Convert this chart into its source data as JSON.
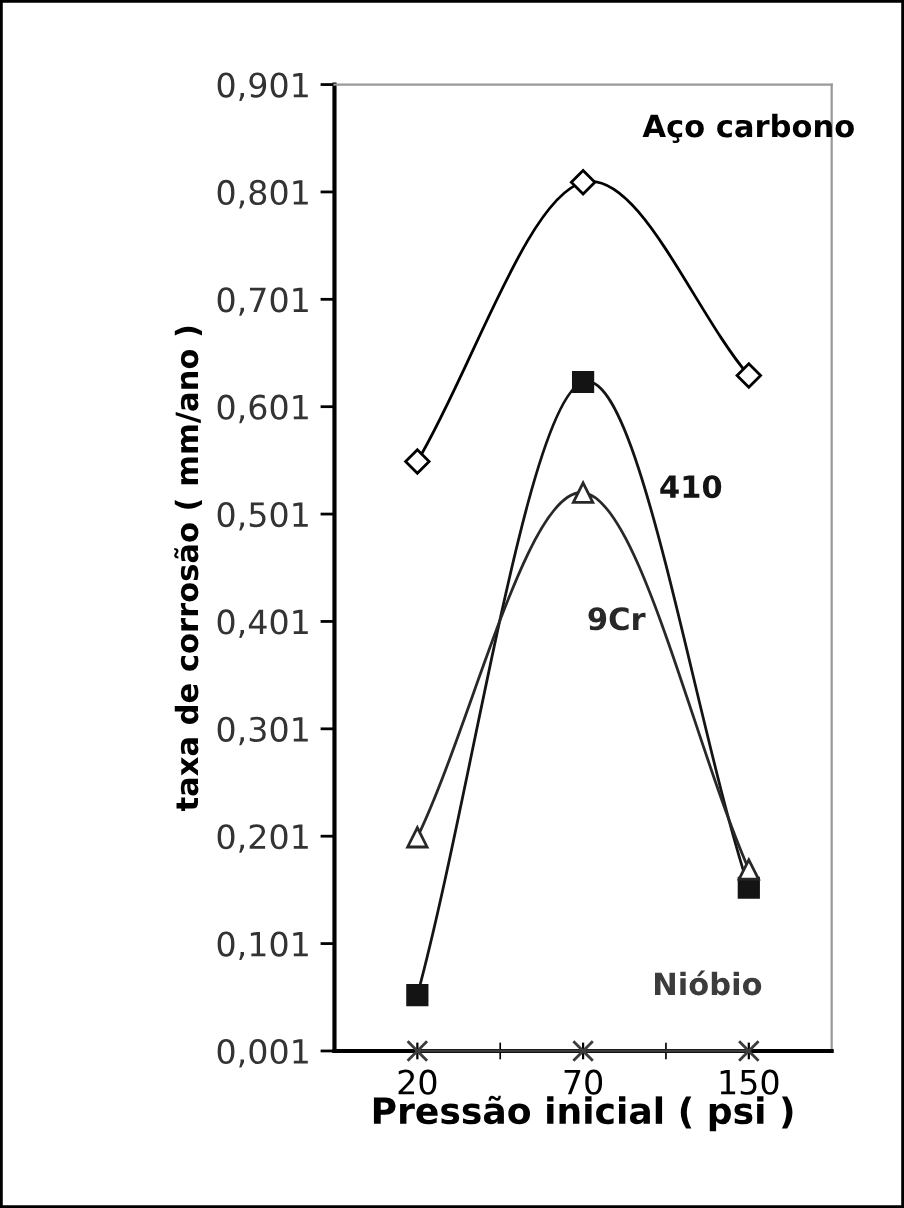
{
  "chart_data": {
    "type": "line",
    "xlabel": "Pressão inicial ( psi )",
    "ylabel": "taxa de corrosão ( mm/ano )",
    "categories": [
      "20",
      "70",
      "150"
    ],
    "ylim": [
      0.001,
      0.901
    ],
    "yticks": [
      {
        "value": 0.001,
        "label": "0,001"
      },
      {
        "value": 0.101,
        "label": "0,101"
      },
      {
        "value": 0.201,
        "label": "0,201"
      },
      {
        "value": 0.301,
        "label": "0,301"
      },
      {
        "value": 0.401,
        "label": "0,401"
      },
      {
        "value": 0.501,
        "label": "0,501"
      },
      {
        "value": 0.601,
        "label": "0,601"
      },
      {
        "value": 0.701,
        "label": "0,701"
      },
      {
        "value": 0.801,
        "label": "0,801"
      },
      {
        "value": 0.901,
        "label": "0,901"
      }
    ],
    "grid": false,
    "legend": false,
    "series": [
      {
        "name": "Aço carbono",
        "color": "#000000",
        "marker": "diamond",
        "values": [
          0.55,
          0.81,
          0.63
        ]
      },
      {
        "name": "410",
        "color": "#141414",
        "marker": "square",
        "values": [
          0.053,
          0.624,
          0.153
        ]
      },
      {
        "name": "9Cr",
        "color": "#282828",
        "marker": "triangle",
        "values": [
          0.2,
          0.521,
          0.17
        ]
      },
      {
        "name": "Nióbio",
        "color": "#3c3c3c",
        "marker": "cross",
        "values": [
          0.001,
          0.001,
          0.001
        ]
      }
    ]
  }
}
